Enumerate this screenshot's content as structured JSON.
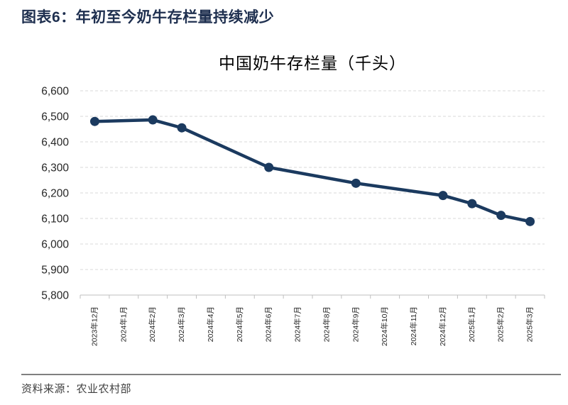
{
  "page": {
    "header_title": "图表6：年初至今奶牛存栏量持续减少",
    "source_note": "资料来源：农业农村部"
  },
  "chart_data": {
    "type": "line",
    "title": "中国奶牛存栏量（千头）",
    "categories": [
      "2023年12月",
      "2024年1月",
      "2024年2月",
      "2024年3月",
      "2024年4月",
      "2024年5月",
      "2024年6月",
      "2024年7月",
      "2024年8月",
      "2024年9月",
      "2024年10月",
      "2024年11月",
      "2024年12月",
      "2025年1月",
      "2025年2月",
      "2025年3月"
    ],
    "series": [
      {
        "name": "中国奶牛存栏量",
        "points": [
          {
            "x": "2023年12月",
            "y": 6480
          },
          {
            "x": "2024年2月",
            "y": 6486
          },
          {
            "x": "2024年3月",
            "y": 6455
          },
          {
            "x": "2024年6月",
            "y": 6300
          },
          {
            "x": "2024年9月",
            "y": 6238
          },
          {
            "x": "2024年12月",
            "y": 6190
          },
          {
            "x": "2025年1月",
            "y": 6158
          },
          {
            "x": "2025年2月",
            "y": 6112
          },
          {
            "x": "2025年3月",
            "y": 6088
          }
        ]
      }
    ],
    "ylim": [
      5800,
      6600
    ],
    "ytick_step": 100,
    "yticks": [
      "6,600",
      "6,500",
      "6,400",
      "6,300",
      "6,200",
      "6,100",
      "6,000",
      "5,900",
      "5,800"
    ],
    "grid": "horizontal-dashed",
    "legend": "none",
    "marker": "circle",
    "colors": {
      "line": "#1b3a5f",
      "grid": "#d9d9d9",
      "axis": "#bfbfbf",
      "header": "#1e2f4f",
      "tick_text": "#262626",
      "source_text": "#404040",
      "rule": "#808080"
    }
  }
}
